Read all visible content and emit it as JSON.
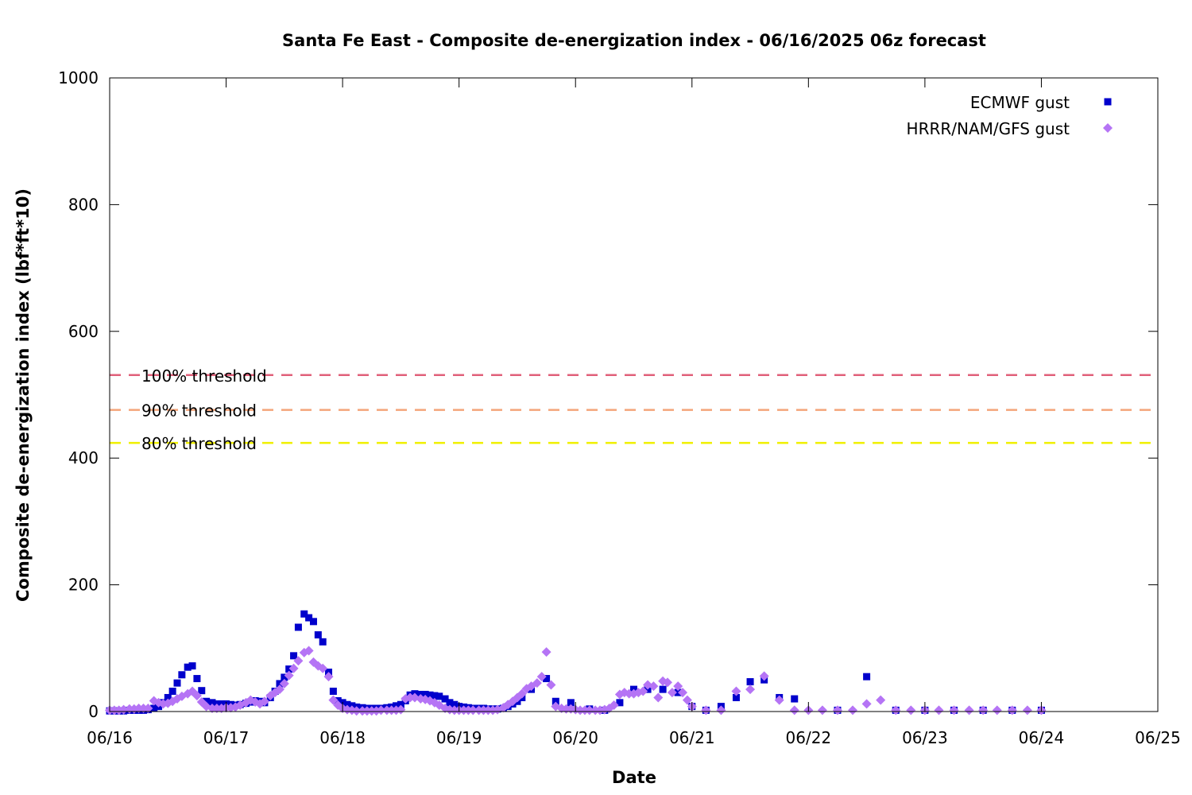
{
  "chart_data": {
    "type": "scatter",
    "title": "Santa Fe East - Composite de-energization index - 06/16/2025 06z forecast",
    "xlabel": "Date",
    "ylabel": "Composite de-energization index (lbf*ft*10)",
    "xlim": [
      0,
      9
    ],
    "ylim": [
      0,
      1000
    ],
    "x_ticks": [
      {
        "v": 0,
        "label": "06/16"
      },
      {
        "v": 1,
        "label": "06/17"
      },
      {
        "v": 2,
        "label": "06/18"
      },
      {
        "v": 3,
        "label": "06/19"
      },
      {
        "v": 4,
        "label": "06/20"
      },
      {
        "v": 5,
        "label": "06/21"
      },
      {
        "v": 6,
        "label": "06/22"
      },
      {
        "v": 7,
        "label": "06/23"
      },
      {
        "v": 8,
        "label": "06/24"
      },
      {
        "v": 9,
        "label": "06/25"
      }
    ],
    "y_ticks": [
      {
        "v": 0,
        "label": "0"
      },
      {
        "v": 200,
        "label": "200"
      },
      {
        "v": 400,
        "label": "400"
      },
      {
        "v": 600,
        "label": "600"
      },
      {
        "v": 800,
        "label": "800"
      },
      {
        "v": 1000,
        "label": "1000"
      }
    ],
    "legend_position": "top-right",
    "thresholds": [
      {
        "label": "100% threshold",
        "value": 531,
        "color": "#e0607a"
      },
      {
        "label": "90% threshold",
        "value": 476,
        "color": "#f4a57a"
      },
      {
        "label": "80% threshold",
        "value": 424,
        "color": "#f0f000"
      }
    ],
    "series": [
      {
        "name": "ECMWF gust",
        "color": "#0000cc",
        "marker": "square",
        "points": [
          [
            0.0,
            1
          ],
          [
            0.04,
            1
          ],
          [
            0.08,
            1
          ],
          [
            0.12,
            1
          ],
          [
            0.17,
            2
          ],
          [
            0.21,
            2
          ],
          [
            0.25,
            2
          ],
          [
            0.29,
            2
          ],
          [
            0.33,
            3
          ],
          [
            0.38,
            5
          ],
          [
            0.42,
            8
          ],
          [
            0.46,
            14
          ],
          [
            0.5,
            22
          ],
          [
            0.54,
            32
          ],
          [
            0.58,
            45
          ],
          [
            0.62,
            58
          ],
          [
            0.67,
            70
          ],
          [
            0.71,
            72
          ],
          [
            0.75,
            52
          ],
          [
            0.79,
            33
          ],
          [
            0.83,
            16
          ],
          [
            0.88,
            14
          ],
          [
            0.92,
            12
          ],
          [
            0.96,
            12
          ],
          [
            1.0,
            12
          ],
          [
            1.04,
            11
          ],
          [
            1.08,
            10
          ],
          [
            1.12,
            11
          ],
          [
            1.17,
            13
          ],
          [
            1.21,
            15
          ],
          [
            1.25,
            17
          ],
          [
            1.29,
            16
          ],
          [
            1.33,
            14
          ],
          [
            1.38,
            22
          ],
          [
            1.42,
            32
          ],
          [
            1.46,
            44
          ],
          [
            1.5,
            54
          ],
          [
            1.54,
            67
          ],
          [
            1.58,
            88
          ],
          [
            1.62,
            133
          ],
          [
            1.67,
            154
          ],
          [
            1.71,
            148
          ],
          [
            1.75,
            142
          ],
          [
            1.79,
            121
          ],
          [
            1.83,
            110
          ],
          [
            1.88,
            62
          ],
          [
            1.92,
            32
          ],
          [
            1.96,
            17
          ],
          [
            2.0,
            14
          ],
          [
            2.04,
            11
          ],
          [
            2.08,
            9
          ],
          [
            2.12,
            7
          ],
          [
            2.17,
            6
          ],
          [
            2.21,
            5
          ],
          [
            2.25,
            5
          ],
          [
            2.29,
            5
          ],
          [
            2.33,
            5
          ],
          [
            2.38,
            6
          ],
          [
            2.42,
            7
          ],
          [
            2.46,
            9
          ],
          [
            2.5,
            11
          ],
          [
            2.54,
            17
          ],
          [
            2.58,
            26
          ],
          [
            2.62,
            28
          ],
          [
            2.67,
            27
          ],
          [
            2.71,
            27
          ],
          [
            2.75,
            26
          ],
          [
            2.79,
            25
          ],
          [
            2.83,
            24
          ],
          [
            2.88,
            20
          ],
          [
            2.92,
            14
          ],
          [
            2.96,
            11
          ],
          [
            3.0,
            8
          ],
          [
            3.04,
            7
          ],
          [
            3.08,
            6
          ],
          [
            3.12,
            5
          ],
          [
            3.17,
            5
          ],
          [
            3.21,
            5
          ],
          [
            3.25,
            4
          ],
          [
            3.29,
            4
          ],
          [
            3.33,
            4
          ],
          [
            3.38,
            5
          ],
          [
            3.42,
            8
          ],
          [
            3.46,
            12
          ],
          [
            3.5,
            16
          ],
          [
            3.54,
            22
          ],
          [
            3.62,
            35
          ],
          [
            3.75,
            52
          ],
          [
            3.83,
            16
          ],
          [
            3.96,
            14
          ],
          [
            4.12,
            4
          ],
          [
            4.25,
            2
          ],
          [
            4.38,
            14
          ],
          [
            4.5,
            35
          ],
          [
            4.62,
            35
          ],
          [
            4.75,
            35
          ],
          [
            4.88,
            30
          ],
          [
            5.0,
            8
          ],
          [
            5.12,
            2
          ],
          [
            5.25,
            8
          ],
          [
            5.38,
            22
          ],
          [
            5.5,
            47
          ],
          [
            5.62,
            50
          ],
          [
            5.75,
            22
          ],
          [
            5.88,
            20
          ],
          [
            6.25,
            2
          ],
          [
            6.5,
            55
          ],
          [
            6.75,
            2
          ],
          [
            7.0,
            2
          ],
          [
            7.25,
            2
          ],
          [
            7.5,
            2
          ],
          [
            7.75,
            2
          ],
          [
            8.0,
            2
          ]
        ]
      },
      {
        "name": "HRRR/NAM/GFS gust",
        "color": "#b574f5",
        "marker": "diamond",
        "points": [
          [
            0.0,
            2
          ],
          [
            0.04,
            2
          ],
          [
            0.08,
            2
          ],
          [
            0.12,
            3
          ],
          [
            0.17,
            4
          ],
          [
            0.21,
            4
          ],
          [
            0.25,
            5
          ],
          [
            0.29,
            5
          ],
          [
            0.33,
            5
          ],
          [
            0.38,
            17
          ],
          [
            0.42,
            14
          ],
          [
            0.46,
            12
          ],
          [
            0.5,
            13
          ],
          [
            0.54,
            16
          ],
          [
            0.58,
            20
          ],
          [
            0.62,
            24
          ],
          [
            0.67,
            28
          ],
          [
            0.71,
            32
          ],
          [
            0.75,
            25
          ],
          [
            0.79,
            15
          ],
          [
            0.83,
            8
          ],
          [
            0.88,
            5
          ],
          [
            0.92,
            5
          ],
          [
            0.96,
            5
          ],
          [
            1.0,
            6
          ],
          [
            1.04,
            6
          ],
          [
            1.08,
            7
          ],
          [
            1.12,
            10
          ],
          [
            1.17,
            14
          ],
          [
            1.21,
            18
          ],
          [
            1.25,
            15
          ],
          [
            1.29,
            12
          ],
          [
            1.33,
            16
          ],
          [
            1.38,
            25
          ],
          [
            1.42,
            30
          ],
          [
            1.46,
            35
          ],
          [
            1.5,
            44
          ],
          [
            1.54,
            57
          ],
          [
            1.58,
            68
          ],
          [
            1.62,
            80
          ],
          [
            1.67,
            93
          ],
          [
            1.71,
            96
          ],
          [
            1.75,
            78
          ],
          [
            1.79,
            72
          ],
          [
            1.83,
            68
          ],
          [
            1.88,
            55
          ],
          [
            1.92,
            18
          ],
          [
            1.96,
            10
          ],
          [
            2.0,
            5
          ],
          [
            2.04,
            3
          ],
          [
            2.08,
            2
          ],
          [
            2.12,
            1
          ],
          [
            2.17,
            1
          ],
          [
            2.21,
            1
          ],
          [
            2.25,
            1
          ],
          [
            2.29,
            1
          ],
          [
            2.33,
            2
          ],
          [
            2.38,
            2
          ],
          [
            2.42,
            2
          ],
          [
            2.46,
            2
          ],
          [
            2.5,
            3
          ],
          [
            2.54,
            20
          ],
          [
            2.58,
            22
          ],
          [
            2.62,
            22
          ],
          [
            2.67,
            20
          ],
          [
            2.71,
            19
          ],
          [
            2.75,
            17
          ],
          [
            2.79,
            14
          ],
          [
            2.83,
            10
          ],
          [
            2.88,
            5
          ],
          [
            2.92,
            3
          ],
          [
            2.96,
            2
          ],
          [
            3.0,
            2
          ],
          [
            3.04,
            2
          ],
          [
            3.08,
            2
          ],
          [
            3.12,
            2
          ],
          [
            3.17,
            2
          ],
          [
            3.21,
            2
          ],
          [
            3.25,
            2
          ],
          [
            3.29,
            2
          ],
          [
            3.33,
            3
          ],
          [
            3.38,
            6
          ],
          [
            3.42,
            11
          ],
          [
            3.46,
            16
          ],
          [
            3.5,
            22
          ],
          [
            3.54,
            28
          ],
          [
            3.58,
            36
          ],
          [
            3.62,
            40
          ],
          [
            3.67,
            45
          ],
          [
            3.71,
            55
          ],
          [
            3.75,
            94
          ],
          [
            3.79,
            42
          ],
          [
            3.83,
            8
          ],
          [
            3.88,
            5
          ],
          [
            3.92,
            4
          ],
          [
            3.96,
            4
          ],
          [
            4.0,
            3
          ],
          [
            4.04,
            2
          ],
          [
            4.08,
            2
          ],
          [
            4.12,
            2
          ],
          [
            4.17,
            2
          ],
          [
            4.21,
            2
          ],
          [
            4.25,
            3
          ],
          [
            4.29,
            5
          ],
          [
            4.33,
            10
          ],
          [
            4.38,
            27
          ],
          [
            4.42,
            30
          ],
          [
            4.46,
            28
          ],
          [
            4.5,
            28
          ],
          [
            4.54,
            30
          ],
          [
            4.58,
            32
          ],
          [
            4.62,
            42
          ],
          [
            4.67,
            40
          ],
          [
            4.71,
            22
          ],
          [
            4.75,
            48
          ],
          [
            4.79,
            46
          ],
          [
            4.83,
            30
          ],
          [
            4.88,
            40
          ],
          [
            4.92,
            30
          ],
          [
            4.96,
            18
          ],
          [
            5.0,
            8
          ],
          [
            5.12,
            2
          ],
          [
            5.25,
            2
          ],
          [
            5.38,
            32
          ],
          [
            5.5,
            35
          ],
          [
            5.62,
            56
          ],
          [
            5.75,
            18
          ],
          [
            5.88,
            2
          ],
          [
            6.0,
            2
          ],
          [
            6.12,
            2
          ],
          [
            6.25,
            2
          ],
          [
            6.38,
            2
          ],
          [
            6.5,
            12
          ],
          [
            6.62,
            18
          ],
          [
            6.75,
            2
          ],
          [
            6.88,
            2
          ],
          [
            7.0,
            2
          ],
          [
            7.12,
            2
          ],
          [
            7.25,
            2
          ],
          [
            7.38,
            2
          ],
          [
            7.5,
            2
          ],
          [
            7.62,
            2
          ],
          [
            7.75,
            2
          ],
          [
            7.88,
            2
          ],
          [
            8.0,
            2
          ]
        ]
      }
    ]
  }
}
